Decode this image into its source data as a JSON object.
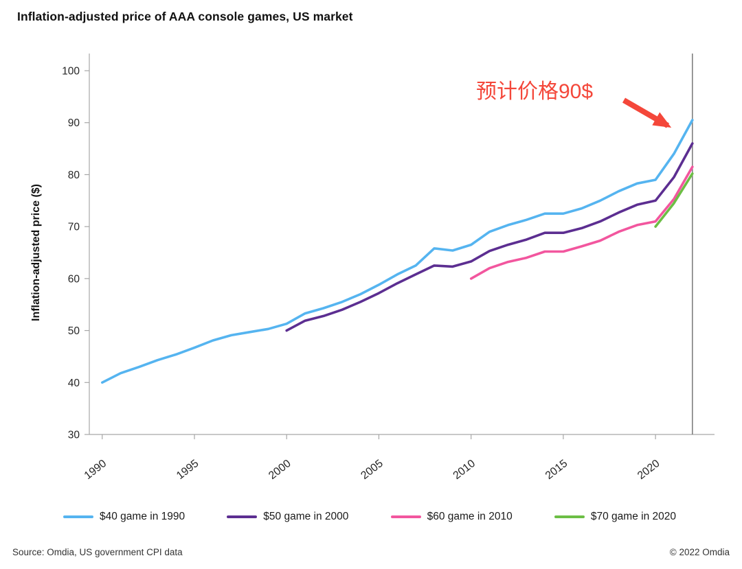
{
  "title": "Inflation-adjusted price of AAA console games, US market",
  "annotation": {
    "text": "预计价格90$",
    "color": "#F4473A"
  },
  "footer": {
    "source": "Source: Omdia, US government CPI data",
    "copyright": "© 2022 Omdia"
  },
  "chart_data": {
    "type": "line",
    "title": "Inflation-adjusted price of AAA console games, US market",
    "xlabel": "",
    "ylabel": "Inflation-adjusted price ($)",
    "ylim": [
      30,
      100
    ],
    "xlim": [
      1989.3,
      2023.2
    ],
    "yticks": [
      30,
      40,
      50,
      60,
      70,
      80,
      90,
      100
    ],
    "xticks": [
      1990,
      1995,
      2000,
      2005,
      2010,
      2015,
      2020
    ],
    "grid": false,
    "legend_position": "bottom",
    "vline_x": 2022,
    "vline_color": "#7F7F7F",
    "axis_color": "#A6A6A6",
    "tick_label_color": "#262626",
    "series": [
      {
        "name": "$40 game in 1990",
        "color": "#55B4F0",
        "x": [
          1990,
          1991,
          1992,
          1993,
          1994,
          1995,
          1996,
          1997,
          1998,
          1999,
          2000,
          2001,
          2002,
          2003,
          2004,
          2005,
          2006,
          2007,
          2008,
          2009,
          2010,
          2011,
          2012,
          2013,
          2014,
          2015,
          2016,
          2017,
          2018,
          2019,
          2020,
          2021,
          2022
        ],
        "values": [
          40.0,
          41.8,
          43.0,
          44.3,
          45.4,
          46.7,
          48.1,
          49.1,
          49.7,
          50.3,
          51.3,
          53.3,
          54.3,
          55.5,
          57.0,
          58.8,
          60.8,
          62.5,
          65.8,
          65.4,
          66.5,
          69.0,
          70.3,
          71.3,
          72.5,
          72.5,
          73.5,
          75.0,
          76.8,
          78.3,
          79.0,
          84.0,
          90.5
        ]
      },
      {
        "name": "$50 game in 2000",
        "color": "#5C2E91",
        "x": [
          2000,
          2001,
          2002,
          2003,
          2004,
          2005,
          2006,
          2007,
          2008,
          2009,
          2010,
          2011,
          2012,
          2013,
          2014,
          2015,
          2016,
          2017,
          2018,
          2019,
          2020,
          2021,
          2022
        ],
        "values": [
          50.0,
          51.9,
          52.8,
          54.0,
          55.5,
          57.2,
          59.1,
          60.8,
          62.5,
          62.3,
          63.3,
          65.3,
          66.5,
          67.5,
          68.8,
          68.8,
          69.7,
          71.0,
          72.7,
          74.2,
          75.0,
          79.5,
          86.0
        ]
      },
      {
        "name": "$60 game in 2010",
        "color": "#F2569E",
        "x": [
          2010,
          2011,
          2012,
          2013,
          2014,
          2015,
          2016,
          2017,
          2018,
          2019,
          2020,
          2021,
          2022
        ],
        "values": [
          60.0,
          62.0,
          63.2,
          64.0,
          65.2,
          65.2,
          66.2,
          67.3,
          69.0,
          70.3,
          71.0,
          75.3,
          81.5
        ]
      },
      {
        "name": "$70 game in 2020",
        "color": "#6CBE45",
        "x": [
          2020,
          2021,
          2022
        ],
        "values": [
          70.0,
          74.5,
          80.2
        ]
      }
    ]
  }
}
